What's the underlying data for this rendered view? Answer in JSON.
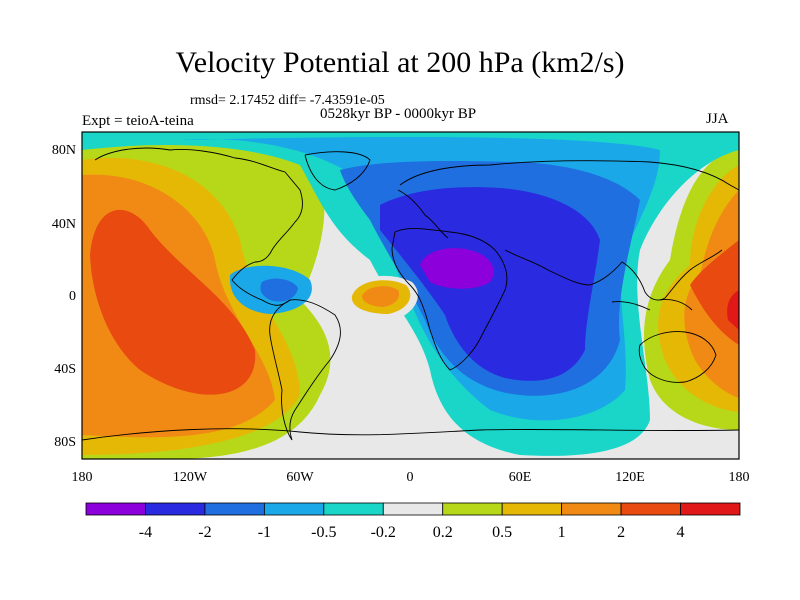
{
  "title": "Velocity Potential at 200 hPa (km2/s)",
  "stats": "rmsd= 2.17452 diff= -7.43591e-05",
  "period": "0528kyr BP - 0000kyr BP",
  "experiment": "Expt = teioA-teina",
  "season": "JJA",
  "lat_ticks": [
    "80N",
    "40N",
    "0",
    "40S",
    "80S"
  ],
  "lon_ticks": [
    "180",
    "120W",
    "60W",
    "0",
    "60E",
    "120E",
    "180"
  ],
  "colorbar": {
    "labels": [
      "-4",
      "-2",
      "-1",
      "-0.5",
      "-0.2",
      "0.2",
      "0.5",
      "1",
      "2",
      "4"
    ],
    "colors": [
      "#8c00dc",
      "#2a2ae0",
      "#1f6fe0",
      "#1aa8e8",
      "#19d6c8",
      "#e8e8e8",
      "#b6d818",
      "#e6b806",
      "#f08a14",
      "#e84a10",
      "#e01818"
    ]
  }
}
